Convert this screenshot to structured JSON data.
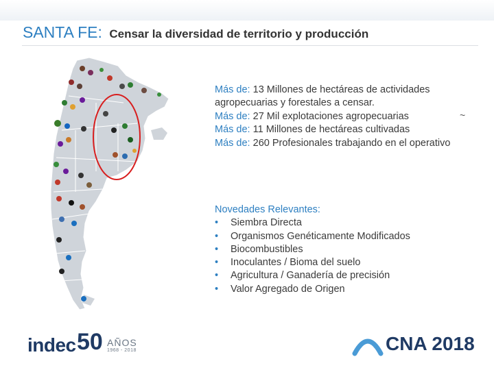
{
  "title": {
    "main": "SANTA FE:",
    "subtitle": "Censar la diversidad de territorio y producción"
  },
  "stats": [
    {
      "label": "Más de:",
      "text": "13 Millones de hectáreas de actividades agropecuarias y forestales a censar."
    },
    {
      "label": "Más de:",
      "text": "27 Mil explotaciones agropecuarias"
    },
    {
      "label": "Más de:",
      "text": "11 Millones de hectáreas cultivadas"
    },
    {
      "label": "Más de:",
      "text": "260 Profesionales trabajando en el operativo"
    }
  ],
  "stray_mark": "~",
  "novedades": {
    "heading": "Novedades Relevantes:",
    "bullet": "•",
    "items": [
      "Siembra Directa",
      "Organismos Genéticamente Modificados",
      "Biocombustibles",
      "Inoculantes / Bioma del suelo",
      "Agricultura / Ganadería de precisión",
      "Valor Agregado de Origen"
    ]
  },
  "footer": {
    "indec_text": "indec",
    "fifty_text": "50",
    "anos_text": "AÑOS",
    "years_text": "1968 - 2018",
    "cna_text": "CNA 2018"
  },
  "colors": {
    "accent": "#2d7fc1",
    "navy": "#1f3a64",
    "map_fill": "#cfd4da",
    "highlight_circle": "#d81e1e"
  }
}
